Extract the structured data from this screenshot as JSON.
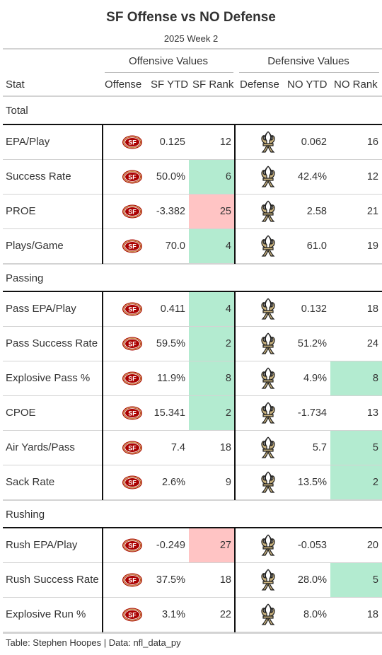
{
  "title": "SF Offense vs NO Defense",
  "subtitle": "2025 Week 2",
  "spanners": {
    "offense": "Offensive Values",
    "defense": "Defensive Values"
  },
  "columns": {
    "stat": "Stat",
    "offense": "Offense",
    "sf_ytd": "SF YTD",
    "sf_rank": "SF Rank",
    "defense": "Defense",
    "no_ytd": "NO YTD",
    "no_rank": "NO Rank"
  },
  "groups": {
    "total": "Total",
    "passing": "Passing",
    "rushing": "Rushing"
  },
  "rows": [
    {
      "stat": "EPA/Play",
      "sf_ytd": "0.125",
      "sf_rank": "12",
      "no_ytd": "0.062",
      "no_rank": "16"
    },
    {
      "stat": "Success Rate",
      "sf_ytd": "50.0%",
      "sf_rank": "6",
      "no_ytd": "42.4%",
      "no_rank": "12"
    },
    {
      "stat": "PROE",
      "sf_ytd": "-3.382",
      "sf_rank": "25",
      "no_ytd": "2.58",
      "no_rank": "21"
    },
    {
      "stat": "Plays/Game",
      "sf_ytd": "70.0",
      "sf_rank": "4",
      "no_ytd": "61.0",
      "no_rank": "19"
    },
    {
      "stat": "Pass EPA/Play",
      "sf_ytd": "0.411",
      "sf_rank": "4",
      "no_ytd": "0.132",
      "no_rank": "18"
    },
    {
      "stat": "Pass Success Rate",
      "sf_ytd": "59.5%",
      "sf_rank": "2",
      "no_ytd": "51.2%",
      "no_rank": "24"
    },
    {
      "stat": "Explosive Pass %",
      "sf_ytd": "11.9%",
      "sf_rank": "8",
      "no_ytd": "4.9%",
      "no_rank": "8"
    },
    {
      "stat": "CPOE",
      "sf_ytd": "15.341",
      "sf_rank": "2",
      "no_ytd": "-1.734",
      "no_rank": "13"
    },
    {
      "stat": "Air Yards/Pass",
      "sf_ytd": "7.4",
      "sf_rank": "18",
      "no_ytd": "5.7",
      "no_rank": "5"
    },
    {
      "stat": "Sack Rate",
      "sf_ytd": "2.6%",
      "sf_rank": "9",
      "no_ytd": "13.5%",
      "no_rank": "2"
    },
    {
      "stat": "Rush EPA/Play",
      "sf_ytd": "-0.249",
      "sf_rank": "27",
      "no_ytd": "-0.053",
      "no_rank": "20"
    },
    {
      "stat": "Rush Success Rate",
      "sf_ytd": "37.5%",
      "sf_rank": "18",
      "no_ytd": "28.0%",
      "no_rank": "5"
    },
    {
      "stat": "Explosive Run %",
      "sf_ytd": "3.1%",
      "sf_rank": "22",
      "no_ytd": "8.0%",
      "no_rank": "18"
    }
  ],
  "rank_colors": {
    "good": "#b3ebd0",
    "bad": "#ffc4c4"
  },
  "team_colors": {
    "sf_red": "#aa0000",
    "sf_gold": "#d4b26a",
    "no_gold": "#c9b27e",
    "no_black": "#1f1f1f"
  },
  "icons": {
    "offense_logo": "sf-49ers-logo-icon",
    "defense_logo": "saints-fleur-de-lis-icon"
  },
  "footer": "Table: Stephen Hoopes | Data: nfl_data_py"
}
